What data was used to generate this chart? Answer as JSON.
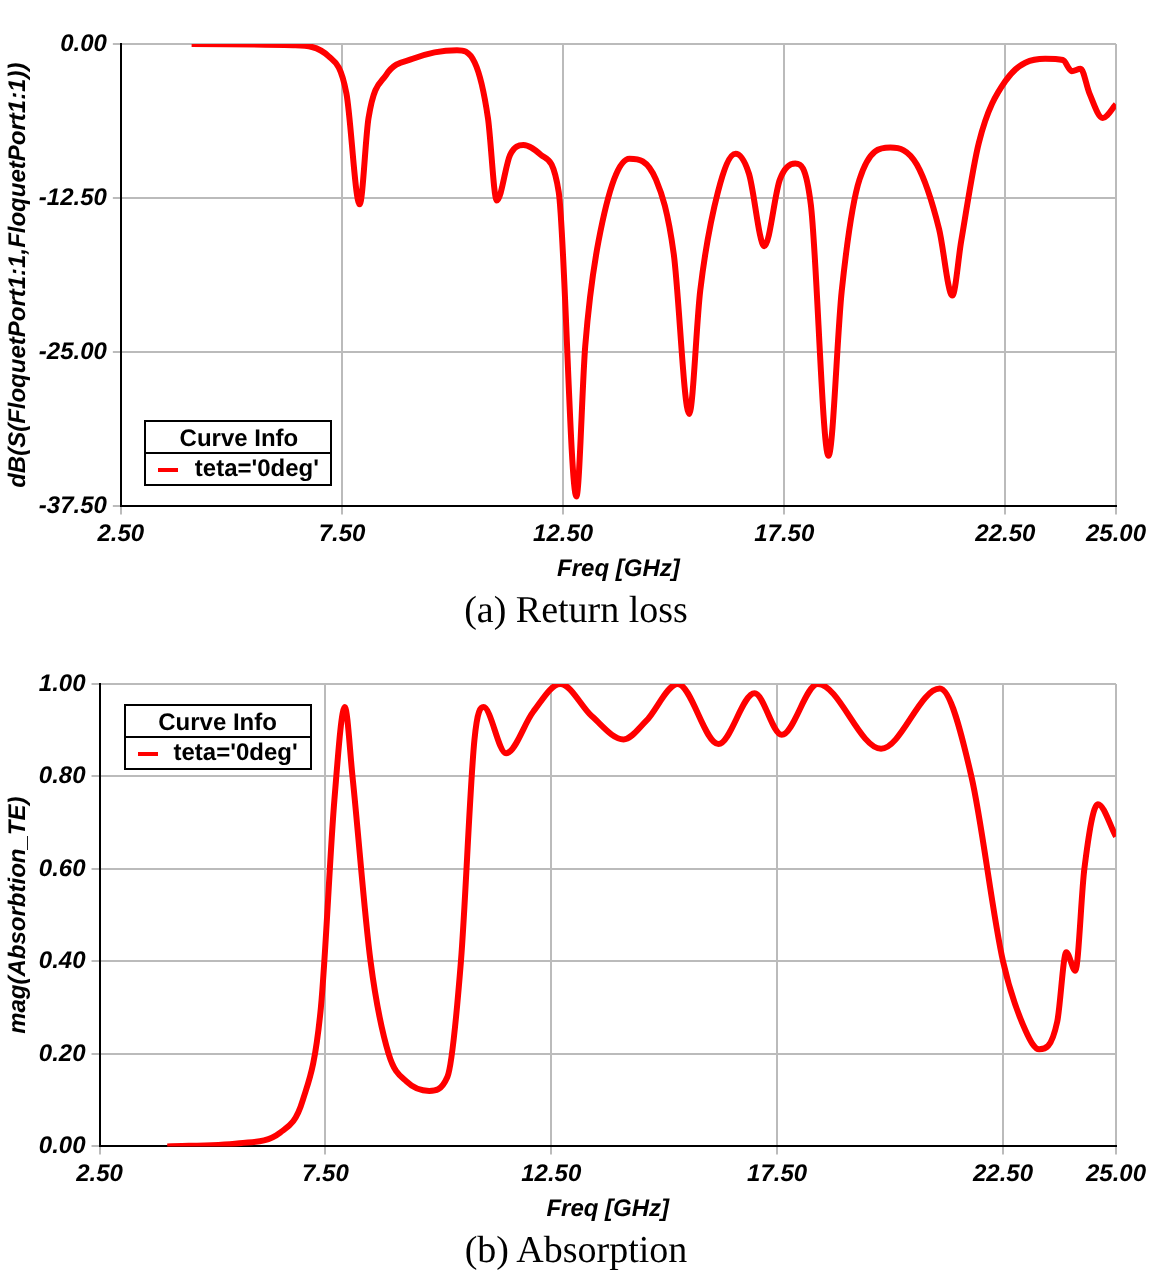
{
  "chart_data": [
    {
      "type": "line",
      "xlabel": "Freq [GHz]",
      "ylabel": "dB(S(FloquetPort1:1,FloquetPort1:1))",
      "legend_title": "Curve Info",
      "legend": "bottom left",
      "grid": true,
      "marker": "none",
      "line_style": "solid",
      "annotations": [
        "(a) Return loss"
      ],
      "xlim": [
        2.5,
        25
      ],
      "xticks": [
        {
          "value": 2.5,
          "label": "2.50"
        },
        {
          "value": 7.5,
          "label": "7.50"
        },
        {
          "value": 12.5,
          "label": "12.50"
        },
        {
          "value": 17.5,
          "label": "17.50"
        },
        {
          "value": 22.5,
          "label": "22.50"
        },
        {
          "value": 25,
          "label": "25.00"
        }
      ],
      "ylim": [
        -37.5,
        0
      ],
      "yticks": [
        {
          "value": -37.5,
          "label": "-37.50"
        },
        {
          "value": -25,
          "label": "-25.00"
        },
        {
          "value": -12.5,
          "label": "-12.50"
        },
        {
          "value": 0,
          "label": "0.00"
        }
      ],
      "series": [
        {
          "name": "teta='0deg'",
          "color": "#ff0000",
          "x": [
            4.1,
            6.4,
            7.2,
            7.6,
            7.9,
            8.1,
            8.5,
            9.1,
            10.1,
            10.5,
            10.8,
            11.0,
            11.3,
            11.6,
            12.0,
            12.4,
            12.8,
            13.0,
            13.3,
            14.0,
            14.6,
            15.0,
            15.35,
            15.6,
            16.0,
            16.4,
            16.7,
            17.05,
            17.4,
            17.75,
            18.1,
            18.5,
            18.8,
            19.2,
            19.9,
            20.5,
            21.0,
            21.3,
            21.5,
            21.9,
            22.5,
            23.4,
            23.8,
            24.0,
            24.2,
            24.4,
            24.7,
            25.0
          ],
          "values": [
            0,
            -0.1,
            -1,
            -4,
            -13,
            -6,
            -2.5,
            -1.2,
            -0.5,
            -1.5,
            -6,
            -12.7,
            -9,
            -8.2,
            -9,
            -12,
            -36.7,
            -24.5,
            -16,
            -9.3,
            -11,
            -17,
            -30,
            -20,
            -12,
            -8.9,
            -10.5,
            -16.4,
            -11,
            -9.7,
            -13,
            -33.4,
            -20,
            -11,
            -8.4,
            -9.8,
            -15,
            -20.4,
            -16,
            -8,
            -3,
            -1.2,
            -1.3,
            -2.2,
            -2,
            -4,
            -6,
            -4.9
          ]
        }
      ]
    },
    {
      "type": "line",
      "xlabel": "Freq [GHz]",
      "ylabel": "mag(Absorbtion_TE)",
      "legend_title": "Curve Info",
      "legend": "top left",
      "grid": true,
      "marker": "none",
      "line_style": "solid",
      "annotations": [
        "(b) Absorption"
      ],
      "xlim": [
        2.5,
        25
      ],
      "xticks": [
        {
          "value": 2.5,
          "label": "2.50"
        },
        {
          "value": 7.5,
          "label": "7.50"
        },
        {
          "value": 12.5,
          "label": "12.50"
        },
        {
          "value": 17.5,
          "label": "17.50"
        },
        {
          "value": 22.5,
          "label": "22.50"
        },
        {
          "value": 25,
          "label": "25.00"
        }
      ],
      "ylim": [
        0,
        1
      ],
      "yticks": [
        {
          "value": 0,
          "label": "0.00"
        },
        {
          "value": 0.2,
          "label": "0.20"
        },
        {
          "value": 0.4,
          "label": "0.40"
        },
        {
          "value": 0.6,
          "label": "0.60"
        },
        {
          "value": 0.8,
          "label": "0.80"
        },
        {
          "value": 1,
          "label": "1.00"
        }
      ],
      "series": [
        {
          "name": "teta='0deg'",
          "color": "#ff0000",
          "x": [
            4.0,
            5.6,
            6.5,
            7.0,
            7.4,
            7.7,
            7.93,
            8.1,
            8.5,
            8.9,
            9.3,
            9.8,
            10.2,
            10.5,
            10.8,
            11.0,
            11.5,
            12.1,
            12.7,
            13.4,
            14.1,
            14.6,
            15.3,
            16.2,
            17.0,
            17.6,
            18.4,
            19.8,
            21.1,
            21.8,
            22.5,
            23.0,
            23.3,
            23.7,
            23.9,
            24.1,
            24.3,
            24.6,
            25.0
          ],
          "values": [
            0,
            0.007,
            0.03,
            0.1,
            0.3,
            0.75,
            0.95,
            0.8,
            0.4,
            0.2,
            0.14,
            0.12,
            0.15,
            0.4,
            0.88,
            0.95,
            0.85,
            0.94,
            1.0,
            0.93,
            0.88,
            0.92,
            1.0,
            0.87,
            0.98,
            0.89,
            1.0,
            0.86,
            0.99,
            0.8,
            0.4,
            0.25,
            0.21,
            0.27,
            0.42,
            0.38,
            0.6,
            0.74,
            0.67
          ]
        }
      ]
    }
  ]
}
